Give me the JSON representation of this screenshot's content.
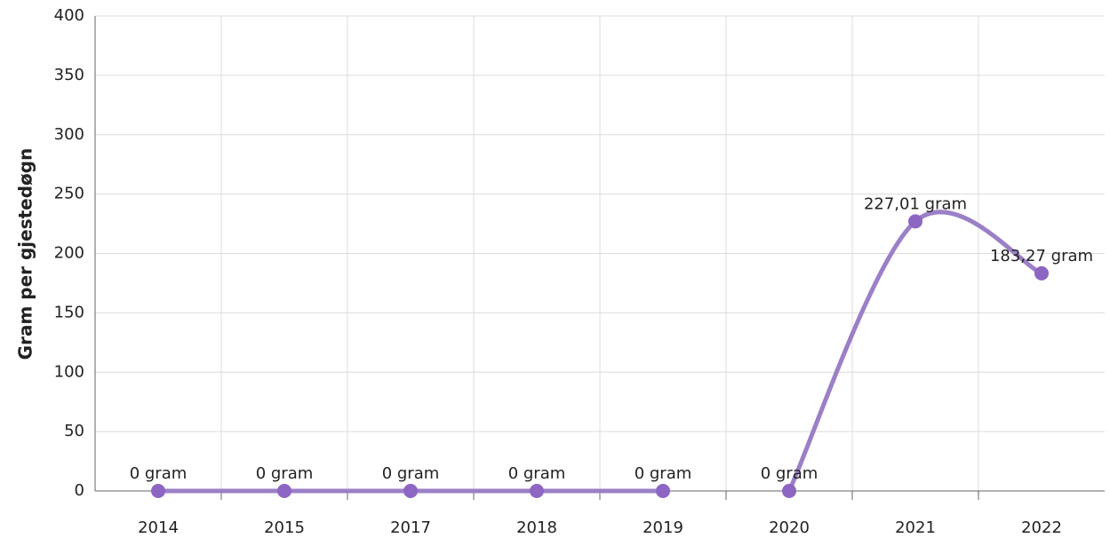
{
  "chart_data": {
    "type": "line",
    "y_label": "Gram per gjestedøgn",
    "categories": [
      "2014",
      "2015",
      "2017",
      "2018",
      "2019",
      "2020",
      "2021",
      "2022"
    ],
    "series": [
      {
        "color": "#9b7fc7",
        "marker_color": "#8d65c2",
        "values": [
          0,
          0,
          0,
          0,
          0,
          null,
          null,
          null
        ],
        "value_labels": [
          "0 gram",
          "0 gram",
          "0 gram",
          "0 gram",
          "0 gram",
          null,
          null,
          null
        ]
      },
      {
        "color": "#9b7fc7",
        "marker_color": "#8d65c2",
        "values": [
          null,
          null,
          null,
          null,
          null,
          0,
          227.01,
          183.27
        ],
        "value_labels": [
          null,
          null,
          null,
          null,
          null,
          "0 gram",
          "227,01 gram",
          "183,27 gram"
        ]
      }
    ],
    "ylim": [
      0,
      400
    ],
    "yticks": [
      0,
      50,
      100,
      150,
      200,
      250,
      300,
      350,
      400
    ],
    "grid": true
  }
}
